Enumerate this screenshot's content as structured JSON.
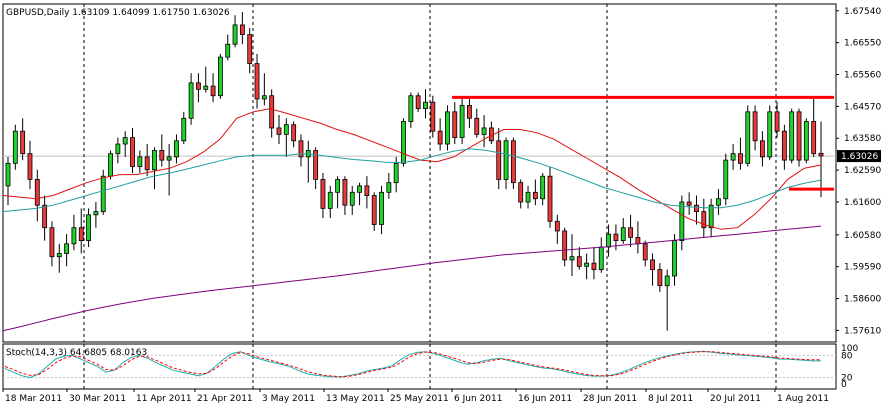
{
  "chart_data": [
    {
      "type": "candlestick",
      "title": "GBPUSD,Daily  1.63109 1.64099 1.61750 1.63026",
      "symbol": "GBPUSD",
      "period": "Daily",
      "ohlc_header": {
        "open": "1.63109",
        "high": "1.64099",
        "low": "1.61750",
        "close": "1.63026"
      },
      "current_price_label": "1.63026",
      "ylim": [
        1.5725,
        1.6775
      ],
      "y_ticks": [
        "1.67540",
        "1.66550",
        "1.65560",
        "1.64570",
        "1.63580",
        "1.62590",
        "1.61600",
        "1.60580",
        "1.59590",
        "1.58600",
        "1.57610"
      ],
      "x_ticks": [
        "18 Mar 2011",
        "30 Mar 2011",
        "11 Apr 2011",
        "21 Apr 2011",
        "3 May 2011",
        "13 May 2011",
        "25 May 2011",
        "6 Jun 2011",
        "16 Jun 2011",
        "28 Jun 2011",
        "8 Jul 2011",
        "20 Jul 2011",
        "1 Aug 2011"
      ],
      "candles": [
        [
          1.621,
          1.63,
          1.615,
          1.628
        ],
        [
          1.628,
          1.64,
          1.626,
          1.638
        ],
        [
          1.638,
          1.642,
          1.629,
          1.631
        ],
        [
          1.631,
          1.635,
          1.62,
          1.623
        ],
        [
          1.623,
          1.626,
          1.61,
          1.615
        ],
        [
          1.615,
          1.618,
          1.604,
          1.608
        ],
        [
          1.608,
          1.61,
          1.596,
          1.599
        ],
        [
          1.599,
          1.603,
          1.594,
          1.6
        ],
        [
          1.6,
          1.606,
          1.596,
          1.603
        ],
        [
          1.603,
          1.612,
          1.601,
          1.608
        ],
        [
          1.608,
          1.614,
          1.6,
          1.604
        ],
        [
          1.604,
          1.614,
          1.602,
          1.612
        ],
        [
          1.612,
          1.616,
          1.608,
          1.613
        ],
        [
          1.613,
          1.626,
          1.612,
          1.624
        ],
        [
          1.624,
          1.632,
          1.623,
          1.631
        ],
        [
          1.631,
          1.636,
          1.628,
          1.634
        ],
        [
          1.634,
          1.638,
          1.63,
          1.636
        ],
        [
          1.636,
          1.639,
          1.625,
          1.627
        ],
        [
          1.627,
          1.632,
          1.625,
          1.63
        ],
        [
          1.63,
          1.634,
          1.624,
          1.626
        ],
        [
          1.626,
          1.633,
          1.62,
          1.632
        ],
        [
          1.632,
          1.637,
          1.627,
          1.629
        ],
        [
          1.629,
          1.634,
          1.618,
          1.63
        ],
        [
          1.63,
          1.637,
          1.628,
          1.635
        ],
        [
          1.635,
          1.644,
          1.634,
          1.642
        ],
        [
          1.642,
          1.656,
          1.64,
          1.653
        ],
        [
          1.653,
          1.656,
          1.647,
          1.651
        ],
        [
          1.651,
          1.658,
          1.65,
          1.652
        ],
        [
          1.652,
          1.656,
          1.647,
          1.649
        ],
        [
          1.649,
          1.662,
          1.648,
          1.661
        ],
        [
          1.661,
          1.668,
          1.66,
          1.665
        ],
        [
          1.665,
          1.674,
          1.664,
          1.671
        ],
        [
          1.671,
          1.675,
          1.665,
          1.668
        ],
        [
          1.668,
          1.67,
          1.656,
          1.659
        ],
        [
          1.659,
          1.662,
          1.645,
          1.648
        ],
        [
          1.648,
          1.656,
          1.646,
          1.649
        ],
        [
          1.649,
          1.651,
          1.636,
          1.639
        ],
        [
          1.639,
          1.643,
          1.634,
          1.637
        ],
        [
          1.637,
          1.642,
          1.63,
          1.64
        ],
        [
          1.64,
          1.641,
          1.633,
          1.635
        ],
        [
          1.635,
          1.637,
          1.627,
          1.63
        ],
        [
          1.63,
          1.635,
          1.622,
          1.632
        ],
        [
          1.632,
          1.633,
          1.62,
          1.623
        ],
        [
          1.623,
          1.625,
          1.611,
          1.614
        ],
        [
          1.614,
          1.621,
          1.611,
          1.619
        ],
        [
          1.619,
          1.624,
          1.614,
          1.623
        ],
        [
          1.623,
          1.624,
          1.612,
          1.615
        ],
        [
          1.615,
          1.621,
          1.612,
          1.619
        ],
        [
          1.619,
          1.622,
          1.615,
          1.621
        ],
        [
          1.621,
          1.624,
          1.614,
          1.618
        ],
        [
          1.618,
          1.619,
          1.607,
          1.609
        ],
        [
          1.609,
          1.621,
          1.606,
          1.619
        ],
        [
          1.619,
          1.625,
          1.617,
          1.622
        ],
        [
          1.622,
          1.63,
          1.619,
          1.628
        ],
        [
          1.628,
          1.642,
          1.627,
          1.641
        ],
        [
          1.641,
          1.65,
          1.639,
          1.649
        ],
        [
          1.649,
          1.65,
          1.644,
          1.645
        ],
        [
          1.645,
          1.651,
          1.642,
          1.647
        ],
        [
          1.647,
          1.649,
          1.636,
          1.638
        ],
        [
          1.638,
          1.642,
          1.632,
          1.634
        ],
        [
          1.634,
          1.646,
          1.632,
          1.644
        ],
        [
          1.644,
          1.647,
          1.634,
          1.636
        ],
        [
          1.636,
          1.648,
          1.634,
          1.646
        ],
        [
          1.646,
          1.648,
          1.639,
          1.642
        ],
        [
          1.642,
          1.645,
          1.636,
          1.637
        ],
        [
          1.637,
          1.643,
          1.633,
          1.639
        ],
        [
          1.639,
          1.641,
          1.634,
          1.635
        ],
        [
          1.635,
          1.639,
          1.62,
          1.623
        ],
        [
          1.623,
          1.636,
          1.62,
          1.635
        ],
        [
          1.635,
          1.636,
          1.62,
          1.622
        ],
        [
          1.622,
          1.623,
          1.614,
          1.616
        ],
        [
          1.616,
          1.621,
          1.614,
          1.619
        ],
        [
          1.619,
          1.623,
          1.615,
          1.617
        ],
        [
          1.617,
          1.625,
          1.615,
          1.624
        ],
        [
          1.624,
          1.627,
          1.608,
          1.61
        ],
        [
          1.61,
          1.612,
          1.603,
          1.607
        ],
        [
          1.607,
          1.608,
          1.596,
          1.598
        ],
        [
          1.598,
          1.606,
          1.593,
          1.599
        ],
        [
          1.599,
          1.602,
          1.595,
          1.596
        ],
        [
          1.596,
          1.6,
          1.592,
          1.597
        ],
        [
          1.597,
          1.602,
          1.592,
          1.595
        ],
        [
          1.595,
          1.605,
          1.594,
          1.602
        ],
        [
          1.602,
          1.609,
          1.599,
          1.606
        ],
        [
          1.606,
          1.609,
          1.601,
          1.604
        ],
        [
          1.604,
          1.611,
          1.603,
          1.608
        ],
        [
          1.608,
          1.612,
          1.602,
          1.605
        ],
        [
          1.605,
          1.61,
          1.6,
          1.603
        ],
        [
          1.603,
          1.604,
          1.596,
          1.598
        ],
        [
          1.598,
          1.6,
          1.59,
          1.595
        ],
        [
          1.595,
          1.597,
          1.588,
          1.59
        ],
        [
          1.59,
          1.595,
          1.576,
          1.593
        ],
        [
          1.593,
          1.606,
          1.59,
          1.604
        ],
        [
          1.604,
          1.618,
          1.601,
          1.616
        ],
        [
          1.616,
          1.619,
          1.612,
          1.615
        ],
        [
          1.615,
          1.618,
          1.609,
          1.613
        ],
        [
          1.613,
          1.617,
          1.605,
          1.608
        ],
        [
          1.608,
          1.617,
          1.605,
          1.615
        ],
        [
          1.615,
          1.62,
          1.612,
          1.617
        ],
        [
          1.617,
          1.631,
          1.615,
          1.629
        ],
        [
          1.629,
          1.634,
          1.626,
          1.631
        ],
        [
          1.631,
          1.636,
          1.626,
          1.628
        ],
        [
          1.628,
          1.646,
          1.627,
          1.644
        ],
        [
          1.644,
          1.646,
          1.632,
          1.635
        ],
        [
          1.635,
          1.638,
          1.627,
          1.63
        ],
        [
          1.63,
          1.646,
          1.629,
          1.644
        ],
        [
          1.644,
          1.647,
          1.636,
          1.638
        ],
        [
          1.638,
          1.64,
          1.626,
          1.629
        ],
        [
          1.629,
          1.645,
          1.628,
          1.644
        ],
        [
          1.644,
          1.645,
          1.627,
          1.629
        ],
        [
          1.629,
          1.642,
          1.628,
          1.641
        ],
        [
          1.641,
          1.648,
          1.63,
          1.631
        ],
        [
          1.6311,
          1.641,
          1.6175,
          1.6303
        ]
      ],
      "series": [
        {
          "kind": "line",
          "color": "#e01010",
          "values": [
            1.618,
            1.6175,
            1.617,
            1.618,
            1.62,
            1.622,
            1.6235,
            1.6245,
            1.6245,
            1.6255,
            1.6265,
            1.6285,
            1.6315,
            1.6355,
            1.642,
            1.644,
            1.645,
            1.6435,
            1.642,
            1.6405,
            1.6385,
            1.637,
            1.635,
            1.633,
            1.631,
            1.629,
            1.6285,
            1.63,
            1.633,
            1.636,
            1.6385,
            1.6385,
            1.6375,
            1.6355,
            1.6325,
            1.6295,
            1.6265,
            1.6235,
            1.62,
            1.617,
            1.614,
            1.611,
            1.609,
            1.6075,
            1.608,
            1.612,
            1.617,
            1.623,
            1.6265,
            1.6275
          ]
        },
        {
          "kind": "line",
          "color": "#20a0a0",
          "values": [
            1.613,
            1.6135,
            1.614,
            1.615,
            1.6165,
            1.618,
            1.6195,
            1.621,
            1.6225,
            1.624,
            1.625,
            1.6262,
            1.6275,
            1.6288,
            1.63,
            1.6305,
            1.6305,
            1.6305,
            1.631,
            1.6305,
            1.6298,
            1.6292,
            1.6288,
            1.6283,
            1.6283,
            1.629,
            1.6305,
            1.6318,
            1.6325,
            1.632,
            1.631,
            1.6297,
            1.6282,
            1.6265,
            1.6245,
            1.6225,
            1.6205,
            1.619,
            1.6175,
            1.616,
            1.615,
            1.6145,
            1.6142,
            1.6142,
            1.615,
            1.6165,
            1.6185,
            1.6205,
            1.6218,
            1.6228
          ]
        },
        {
          "kind": "line",
          "color": "#800080",
          "values": [
            1.576,
            1.5772,
            1.5785,
            1.5798,
            1.581,
            1.5822,
            1.5833,
            1.5843,
            1.5852,
            1.5861,
            1.5868,
            1.5875,
            1.5882,
            1.5888,
            1.5894,
            1.59,
            1.5906,
            1.5912,
            1.5918,
            1.5924,
            1.593,
            1.5937,
            1.5944,
            1.5951,
            1.5958,
            1.5965,
            1.5972,
            1.5978,
            1.5984,
            1.599,
            1.5996,
            1.6,
            1.6004,
            1.6008,
            1.6012,
            1.6016,
            1.602,
            1.6025,
            1.603,
            1.6035,
            1.604,
            1.6045,
            1.605,
            1.6055,
            1.606,
            1.6065,
            1.607,
            1.6075,
            1.608,
            1.6085
          ]
        }
      ],
      "horizontal_lines": [
        {
          "y": 1.6485,
          "color": "#ff0000",
          "x_start_index": 62
        },
        {
          "y": 1.62,
          "color": "#ff0000",
          "x_start_index": 108
        }
      ]
    },
    {
      "type": "line",
      "title": "Stoch(14,3,3) 64.6805 68.0163",
      "ylim": [
        0,
        100
      ],
      "y_ticks": [
        "100",
        "80",
        "20",
        "0"
      ],
      "series": [
        {
          "color": "#20b0b0",
          "values": [
            45,
            35,
            25,
            20,
            30,
            50,
            70,
            78,
            80,
            70,
            60,
            50,
            35,
            40,
            60,
            75,
            80,
            72,
            60,
            50,
            40,
            35,
            30,
            25,
            32,
            50,
            70,
            85,
            90,
            80,
            72,
            66,
            60,
            55,
            48,
            38,
            30,
            26,
            24,
            22,
            22,
            26,
            30,
            38,
            42,
            46,
            52,
            68,
            82,
            88,
            90,
            85,
            78,
            70,
            62,
            56,
            60,
            66,
            70,
            72,
            65,
            60,
            55,
            50,
            46,
            44,
            40,
            34,
            30,
            26,
            24,
            24,
            26,
            32,
            40,
            50,
            60,
            68,
            75,
            80,
            85,
            88,
            90,
            91,
            89,
            86,
            84,
            82,
            80,
            78,
            76,
            74,
            70,
            70,
            68,
            67,
            65,
            65
          ]
        },
        {
          "color": "#ff0000",
          "dashed": true,
          "values": [
            50,
            42,
            32,
            26,
            28,
            42,
            60,
            72,
            78,
            76,
            66,
            56,
            42,
            40,
            52,
            68,
            78,
            76,
            66,
            56,
            46,
            40,
            34,
            30,
            32,
            44,
            62,
            78,
            88,
            84,
            76,
            70,
            64,
            58,
            52,
            44,
            36,
            30,
            26,
            24,
            22,
            24,
            28,
            34,
            40,
            44,
            48,
            60,
            75,
            85,
            89,
            88,
            82,
            75,
            68,
            60,
            58,
            62,
            67,
            70,
            68,
            63,
            58,
            53,
            49,
            46,
            43,
            38,
            33,
            29,
            26,
            25,
            25,
            29,
            36,
            45,
            55,
            64,
            72,
            78,
            83,
            87,
            89,
            90,
            90,
            88,
            86,
            84,
            82,
            80,
            78,
            76,
            73,
            72,
            70,
            69,
            68,
            68
          ]
        }
      ]
    }
  ]
}
